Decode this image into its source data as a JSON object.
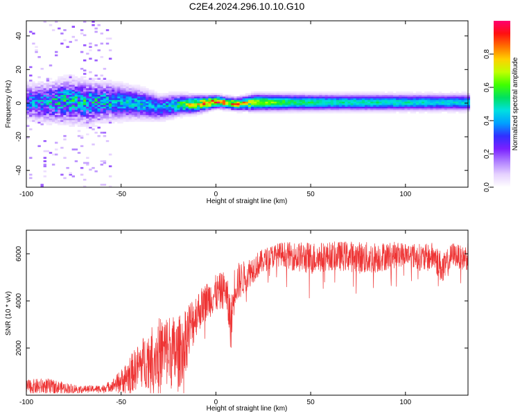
{
  "figure_title": "C2E4.2024.296.10.10.G10",
  "chart_data": [
    {
      "type": "heatmap",
      "title": "",
      "xlabel": "Height of straight line (km)",
      "ylabel": "Frequency (Hz)",
      "xlim": [
        -100,
        133
      ],
      "ylim": [
        -50,
        49
      ],
      "xticks": [
        -100,
        -50,
        0,
        50,
        100
      ],
      "yticks": [
        -40,
        -20,
        0,
        20,
        40
      ],
      "colorbar": {
        "label": "Normalized spectral amplitude",
        "range": [
          0,
          1
        ],
        "ticks": [
          0.0,
          0.2,
          0.4,
          0.6,
          0.8
        ],
        "tick_labels": [
          "0.0",
          "0.2",
          "0.4",
          "0.6",
          "0.8"
        ],
        "colormap": [
          "#ffffff",
          "#e6d2ff",
          "#b080ff",
          "#7a20ff",
          "#3030ff",
          "#00a0ff",
          "#00e0e0",
          "#00e060",
          "#40ff00",
          "#c0ff00",
          "#ffd000",
          "#ff7000",
          "#ff1010",
          "#ff0070"
        ]
      },
      "ridge": [
        {
          "x": -100,
          "f": 0.5,
          "amp": 0.35,
          "width": 8
        },
        {
          "x": -90,
          "f": 0.0,
          "amp": 0.4,
          "width": 9
        },
        {
          "x": -80,
          "f": 1.0,
          "amp": 0.45,
          "width": 10
        },
        {
          "x": -70,
          "f": 0.0,
          "amp": 0.45,
          "width": 10
        },
        {
          "x": -60,
          "f": 0.5,
          "amp": 0.42,
          "width": 9
        },
        {
          "x": -50,
          "f": 0.0,
          "amp": 0.45,
          "width": 8
        },
        {
          "x": -40,
          "f": -1.0,
          "amp": 0.45,
          "width": 7
        },
        {
          "x": -30,
          "f": -3.0,
          "amp": 0.4,
          "width": 6
        },
        {
          "x": -20,
          "f": -1.5,
          "amp": 0.55,
          "width": 5
        },
        {
          "x": -10,
          "f": -1.0,
          "amp": 0.8,
          "width": 4
        },
        {
          "x": 0,
          "f": 0.5,
          "amp": 0.9,
          "width": 3
        },
        {
          "x": 10,
          "f": -1.0,
          "amp": 0.8,
          "width": 3
        },
        {
          "x": 20,
          "f": 0.0,
          "amp": 0.7,
          "width": 4
        },
        {
          "x": 40,
          "f": 0.0,
          "amp": 0.55,
          "width": 4
        },
        {
          "x": 60,
          "f": 0.0,
          "amp": 0.5,
          "width": 4
        },
        {
          "x": 80,
          "f": 0.0,
          "amp": 0.5,
          "width": 4
        },
        {
          "x": 100,
          "f": 0.0,
          "amp": 0.48,
          "width": 4
        },
        {
          "x": 133,
          "f": 0.0,
          "amp": 0.45,
          "width": 4
        }
      ]
    },
    {
      "type": "line",
      "title": "",
      "xlabel": "Height of straight line (km)",
      "ylabel": "SNR (10 * v/v)",
      "xlim": [
        -100,
        133
      ],
      "ylim": [
        0,
        7000
      ],
      "xticks": [
        -100,
        -50,
        0,
        50,
        100
      ],
      "yticks": [
        2000,
        4000,
        6000
      ],
      "series": [
        {
          "color": "#ee3333",
          "x": [
            -100,
            -90,
            -80,
            -70,
            -60,
            -55,
            -50,
            -45,
            -40,
            -35,
            -30,
            -25,
            -20,
            -15,
            -10,
            -5,
            0,
            5,
            8,
            10,
            15,
            20,
            25,
            30,
            35,
            40,
            50,
            60,
            70,
            80,
            90,
            100,
            110,
            115,
            120,
            125,
            130,
            133
          ],
          "center": [
            350,
            380,
            300,
            250,
            280,
            400,
            600,
            900,
            1300,
            1600,
            1800,
            1900,
            1700,
            2600,
            3500,
            4000,
            4300,
            4500,
            3000,
            4700,
            5000,
            5400,
            5700,
            5900,
            6000,
            5900,
            5800,
            5900,
            5900,
            5800,
            5900,
            6000,
            5800,
            5900,
            5300,
            6000,
            5800,
            5900
          ],
          "amplitude": [
            300,
            350,
            250,
            150,
            150,
            250,
            500,
            800,
            1000,
            1300,
            1500,
            1600,
            1600,
            1400,
            900,
            800,
            800,
            800,
            1200,
            900,
            700,
            600,
            500,
            500,
            500,
            600,
            700,
            600,
            650,
            700,
            600,
            500,
            600,
            600,
            700,
            500,
            500,
            600
          ],
          "range": [
            90,
            7000
          ]
        }
      ]
    }
  ]
}
